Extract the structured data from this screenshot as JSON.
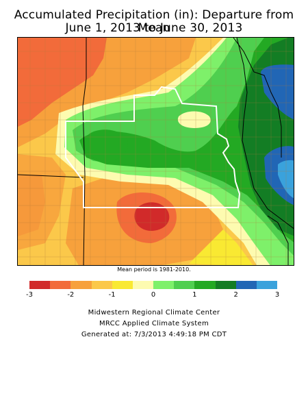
{
  "title_line1": "Accumulated Precipitation (in): Departure from Mean",
  "title_line2": "June 1, 2013 to June 30, 2013",
  "mean_period_note": "Mean period is 1981-2010.",
  "legend": {
    "colors": [
      "#d12a2a",
      "#f26b3a",
      "#f7a13c",
      "#fbc84a",
      "#f9e932",
      "#fdfbb0",
      "#7ef06a",
      "#4fcf4f",
      "#23a923",
      "#137d24",
      "#2166b5",
      "#3aa2dc"
    ],
    "ticks": [
      "-3",
      "-2",
      "-1",
      "0",
      "1",
      "2",
      "3"
    ]
  },
  "credits": {
    "line1": "Midwestern Regional Climate Center",
    "line2": "MRCC Applied Climate System",
    "line3": "Generated at: 7/3/2013 4:49:18 PM CDT"
  },
  "palette": {
    "background": "#fbc84a",
    "state_line": "#ffffff",
    "county_line": "#b07a3a",
    "border_line": "#000000"
  }
}
